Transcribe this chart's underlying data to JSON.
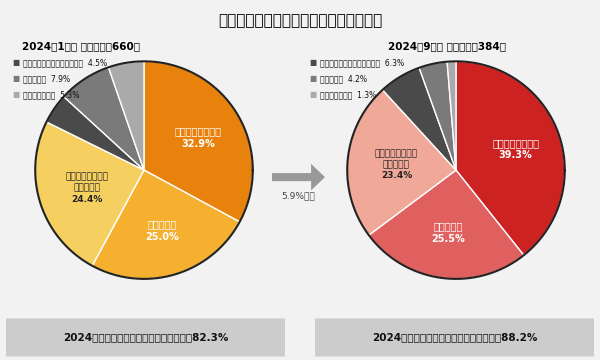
{
  "title": "老後を迎えるにあたっての資金への不安",
  "title_fontsize": 11,
  "background_color": "#f2f2f2",
  "title_bg": "#e8e8e8",
  "left_header": "2024年1月　 回答者数：660人",
  "right_header": "2024年9月　 回答者数：384人",
  "left_slices": [
    32.9,
    25.0,
    24.4,
    4.5,
    7.9,
    5.3
  ],
  "left_colors": [
    "#E8820C",
    "#F5B030",
    "#F5D060",
    "#4A4A4A",
    "#7A7A7A",
    "#AAAAAA"
  ],
  "left_pcts": [
    "32.9%",
    "25.0%",
    "24.4%",
    "4.5%",
    "7.9%",
    "5.3%"
  ],
  "left_main_labels": [
    "とても不安がある",
    "不安がある",
    "どちらかといえば\n不安がある"
  ],
  "left_legend_labels": [
    "どちらかといえば不安はない",
    "不安はない",
    "全く不安はない"
  ],
  "left_legend_pcts": [
    "4.5%",
    "7.9%",
    "5.3%"
  ],
  "left_legend_colors": [
    "#4A4A4A",
    "#7A7A7A",
    "#AAAAAA"
  ],
  "right_slices": [
    39.3,
    25.5,
    23.4,
    6.3,
    4.2,
    1.3
  ],
  "right_colors": [
    "#CC2222",
    "#E06060",
    "#F0A898",
    "#4A4A4A",
    "#7A7A7A",
    "#AAAAAA"
  ],
  "right_pcts": [
    "39.3%",
    "25.5%",
    "23.4%",
    "6.3%",
    "4.2%",
    "1.3%"
  ],
  "right_main_labels": [
    "とても不安がある",
    "不安がある",
    "どちらかといえば\n不安がある"
  ],
  "right_legend_labels": [
    "どちらかといえば不安はない",
    "不安はない",
    "全く不安はない"
  ],
  "right_legend_pcts": [
    "6.3%",
    "4.2%",
    "1.3%"
  ],
  "right_legend_colors": [
    "#4A4A4A",
    "#7A7A7A",
    "#AAAAAA"
  ],
  "arrow_text": "5.9%増加",
  "left_footer": "2024年前期は老後に「不安がある派」は82.3%",
  "right_footer": "2024年後期は老後に「不安がある派」は88.2%",
  "footer_bg": "#cccccc",
  "footer_fontsize": 7.5
}
